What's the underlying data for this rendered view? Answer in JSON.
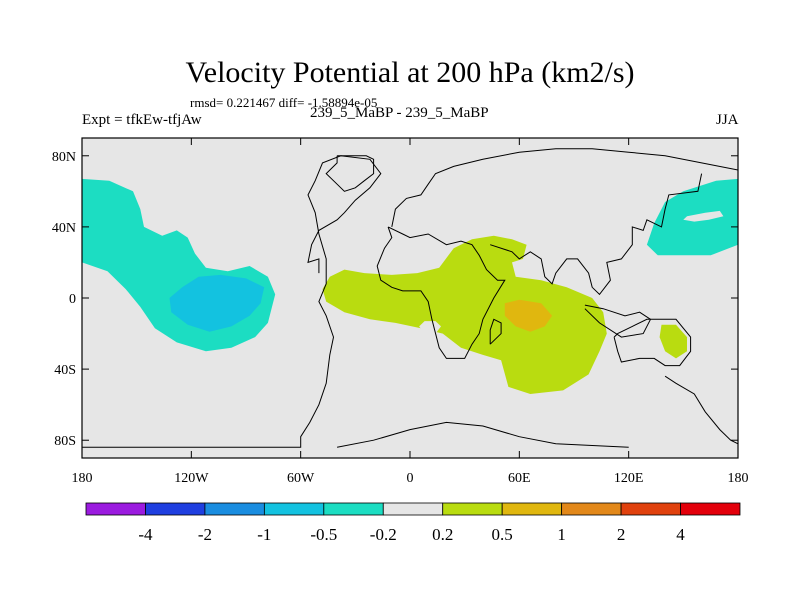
{
  "title": "Velocity Potential at 200 hPa (km2/s)",
  "stats_text": "rmsd= 0.221467 diff= -1.58894e-05",
  "left_label": "Expt = tfkEw-tfjAw",
  "center_label": "239_5_MaBP - 239_5_MaBP",
  "right_label": "JJA",
  "chart_data": {
    "type": "heatmap",
    "projection": "cylindrical equidistant, longitude 180 to 180 (centered on 0)",
    "x_ticks": [
      {
        "lon": -180,
        "label": "180"
      },
      {
        "lon": -120,
        "label": "120W"
      },
      {
        "lon": -60,
        "label": "60W"
      },
      {
        "lon": 0,
        "label": "0"
      },
      {
        "lon": 60,
        "label": "60E"
      },
      {
        "lon": 120,
        "label": "120E"
      },
      {
        "lon": 180,
        "label": "180"
      }
    ],
    "y_ticks": [
      {
        "lat": 80,
        "label": "80N"
      },
      {
        "lat": 40,
        "label": "40N"
      },
      {
        "lat": 0,
        "label": "0"
      },
      {
        "lat": -40,
        "label": "40S"
      },
      {
        "lat": -80,
        "label": "80S"
      }
    ],
    "xlim": [
      -180,
      180
    ],
    "ylim": [
      -90,
      90
    ],
    "background_color": "#e6e6e6",
    "color_bar": {
      "boundaries": [
        "-4",
        "-2",
        "-1",
        "-0.5",
        "-0.2",
        "0.2",
        "0.5",
        "1",
        "2",
        "4"
      ],
      "colors": [
        "#9b1bdf",
        "#1f3fe0",
        "#1a8de0",
        "#13c2e0",
        "#1cddc2",
        "#e6e6e6",
        "#b9dc10",
        "#e0b70f",
        "#e2881a",
        "#e0410e",
        "#e3000b"
      ]
    },
    "regions": [
      {
        "name": "north-pacific-east",
        "level": "-0.5 to -0.2",
        "color": "#1cddc2",
        "points": [
          [
            -180,
            67
          ],
          [
            -165,
            66
          ],
          [
            -152,
            60
          ],
          [
            -148,
            50
          ],
          [
            -146,
            40
          ],
          [
            -136,
            35
          ],
          [
            -128,
            38
          ],
          [
            -122,
            34
          ],
          [
            -118,
            25
          ],
          [
            -112,
            17
          ],
          [
            -100,
            15
          ],
          [
            -88,
            18
          ],
          [
            -78,
            12
          ],
          [
            -74,
            2
          ],
          [
            -78,
            -14
          ],
          [
            -85,
            -22
          ],
          [
            -98,
            -28
          ],
          [
            -112,
            -30
          ],
          [
            -128,
            -25
          ],
          [
            -140,
            -17
          ],
          [
            -148,
            -5
          ],
          [
            -156,
            5
          ],
          [
            -166,
            15
          ],
          [
            -180,
            20
          ]
        ]
      },
      {
        "name": "east-pacific-core",
        "level": "-1 to -0.5",
        "color": "#13c2e0",
        "points": [
          [
            -132,
            0
          ],
          [
            -125,
            6
          ],
          [
            -116,
            12
          ],
          [
            -104,
            13
          ],
          [
            -90,
            11
          ],
          [
            -80,
            6
          ],
          [
            -82,
            -3
          ],
          [
            -88,
            -10
          ],
          [
            -98,
            -16
          ],
          [
            -110,
            -19
          ],
          [
            -122,
            -15
          ],
          [
            -131,
            -8
          ]
        ]
      },
      {
        "name": "north-pacific-west",
        "level": "-0.5 to -0.2",
        "color": "#1cddc2",
        "points": [
          [
            180,
            67
          ],
          [
            168,
            66
          ],
          [
            150,
            60
          ],
          [
            140,
            54
          ],
          [
            134,
            42
          ],
          [
            130,
            30
          ],
          [
            136,
            24
          ],
          [
            150,
            24
          ],
          [
            165,
            24
          ],
          [
            175,
            28
          ],
          [
            180,
            30
          ]
        ]
      },
      {
        "name": "west-pacific-hole",
        "level": "-0.2 to 0.2",
        "color": "#e6e6e6",
        "points": [
          [
            152,
            46
          ],
          [
            162,
            48
          ],
          [
            170,
            49
          ],
          [
            172,
            46
          ],
          [
            164,
            44
          ],
          [
            156,
            43
          ],
          [
            150,
            44
          ]
        ]
      },
      {
        "name": "africa-indian-ocean",
        "level": "0.2 to 0.5",
        "color": "#b9dc10",
        "points": [
          [
            -48,
            5
          ],
          [
            -44,
            12
          ],
          [
            -36,
            16
          ],
          [
            -25,
            14
          ],
          [
            -10,
            13
          ],
          [
            4,
            14
          ],
          [
            16,
            17
          ],
          [
            24,
            28
          ],
          [
            34,
            33
          ],
          [
            46,
            35
          ],
          [
            56,
            33
          ],
          [
            64,
            30
          ],
          [
            62,
            22
          ],
          [
            56,
            20
          ],
          [
            58,
            12
          ],
          [
            72,
            10
          ],
          [
            86,
            6
          ],
          [
            100,
            0
          ],
          [
            106,
            -8
          ],
          [
            108,
            -20
          ],
          [
            104,
            -30
          ],
          [
            98,
            -43
          ],
          [
            84,
            -52
          ],
          [
            66,
            -54
          ],
          [
            54,
            -50
          ],
          [
            50,
            -35
          ],
          [
            40,
            -32
          ],
          [
            28,
            -28
          ],
          [
            18,
            -20
          ],
          [
            6,
            -17
          ],
          [
            -8,
            -14
          ],
          [
            -22,
            -12
          ],
          [
            -36,
            -8
          ],
          [
            -46,
            -2
          ]
        ]
      },
      {
        "name": "south-atlantic-hole",
        "level": "-0.2 to 0.2",
        "color": "#e6e6e6",
        "points": [
          [
            8,
            -13
          ],
          [
            14,
            -13
          ],
          [
            17,
            -16
          ],
          [
            14,
            -20
          ],
          [
            8,
            -20
          ],
          [
            5,
            -16
          ]
        ]
      },
      {
        "name": "indian-ocean-peak",
        "level": "0.5 to 1",
        "color": "#e0b70f",
        "points": [
          [
            52,
            -3
          ],
          [
            60,
            -1
          ],
          [
            72,
            -3
          ],
          [
            78,
            -10
          ],
          [
            74,
            -16
          ],
          [
            66,
            -19
          ],
          [
            58,
            -16
          ],
          [
            52,
            -10
          ]
        ]
      },
      {
        "name": "south-pacific-blob",
        "level": "0.2 to 0.5",
        "color": "#b9dc10",
        "points": [
          [
            138,
            -15
          ],
          [
            146,
            -15
          ],
          [
            152,
            -22
          ],
          [
            152,
            -30
          ],
          [
            146,
            -34
          ],
          [
            140,
            -30
          ],
          [
            137,
            -22
          ]
        ]
      }
    ],
    "coastlines": [
      [
        [
          -180,
          -84
        ],
        [
          -60,
          -84
        ],
        [
          -60,
          -78
        ],
        [
          -55,
          -70
        ],
        [
          -50,
          -60
        ],
        [
          -46,
          -48
        ],
        [
          -44,
          -32
        ],
        [
          -42,
          -22
        ],
        [
          -46,
          -10
        ],
        [
          -50,
          -2
        ],
        [
          -46,
          8
        ],
        [
          -46,
          22
        ],
        [
          -50,
          36
        ],
        [
          -52,
          48
        ],
        [
          -56,
          58
        ],
        [
          -52,
          66
        ],
        [
          -48,
          76
        ],
        [
          -38,
          80
        ],
        [
          -22,
          78
        ],
        [
          -16,
          70
        ],
        [
          -22,
          62
        ],
        [
          -30,
          55
        ],
        [
          -36,
          48
        ],
        [
          -40,
          44
        ],
        [
          -50,
          38
        ],
        [
          -54,
          30
        ],
        [
          -56,
          20
        ],
        [
          -50,
          22
        ],
        [
          -50,
          14
        ]
      ],
      [
        [
          -40,
          80
        ],
        [
          -24,
          80
        ],
        [
          -20,
          78
        ],
        [
          -20,
          70
        ],
        [
          -25,
          66
        ],
        [
          -30,
          62
        ],
        [
          -36,
          60
        ],
        [
          -40,
          64
        ],
        [
          -46,
          70
        ],
        [
          -40,
          76
        ],
        [
          -40,
          80
        ]
      ],
      [
        [
          -12,
          40
        ],
        [
          -4,
          36
        ],
        [
          0,
          34
        ],
        [
          10,
          36
        ],
        [
          20,
          30
        ],
        [
          28,
          32
        ],
        [
          34,
          30
        ],
        [
          38,
          24
        ],
        [
          42,
          16
        ],
        [
          48,
          10
        ],
        [
          52,
          10
        ],
        [
          46,
          0
        ],
        [
          40,
          -12
        ],
        [
          38,
          -20
        ],
        [
          34,
          -26
        ],
        [
          30,
          -34
        ],
        [
          20,
          -34
        ],
        [
          16,
          -28
        ],
        [
          12,
          -12
        ],
        [
          10,
          -2
        ],
        [
          6,
          4
        ],
        [
          -4,
          4
        ],
        [
          -10,
          6
        ],
        [
          -16,
          10
        ],
        [
          -18,
          18
        ],
        [
          -14,
          28
        ],
        [
          -10,
          34
        ],
        [
          -12,
          40
        ]
      ],
      [
        [
          -10,
          40
        ],
        [
          -8,
          50
        ],
        [
          -2,
          56
        ],
        [
          6,
          58
        ],
        [
          10,
          64
        ],
        [
          14,
          70
        ],
        [
          24,
          74
        ],
        [
          40,
          78
        ],
        [
          60,
          82
        ],
        [
          80,
          84
        ],
        [
          100,
          84
        ],
        [
          120,
          82
        ],
        [
          140,
          80
        ],
        [
          160,
          76
        ],
        [
          180,
          72
        ]
      ],
      [
        [
          44,
          30
        ],
        [
          56,
          26
        ],
        [
          60,
          22
        ],
        [
          66,
          26
        ],
        [
          72,
          22
        ],
        [
          74,
          12
        ],
        [
          78,
          8
        ],
        [
          80,
          14
        ],
        [
          86,
          22
        ],
        [
          92,
          22
        ],
        [
          98,
          14
        ],
        [
          100,
          6
        ],
        [
          104,
          2
        ],
        [
          110,
          10
        ],
        [
          108,
          20
        ],
        [
          116,
          22
        ],
        [
          122,
          30
        ],
        [
          122,
          40
        ],
        [
          128,
          38
        ],
        [
          130,
          44
        ],
        [
          138,
          40
        ],
        [
          140,
          50
        ],
        [
          142,
          58
        ],
        [
          158,
          60
        ],
        [
          160,
          70
        ]
      ],
      [
        [
          96,
          -4
        ],
        [
          106,
          -6
        ],
        [
          118,
          -10
        ],
        [
          126,
          -8
        ],
        [
          132,
          -12
        ],
        [
          128,
          -20
        ],
        [
          116,
          -22
        ],
        [
          104,
          -14
        ],
        [
          96,
          -6
        ]
      ],
      [
        [
          44,
          -26
        ],
        [
          50,
          -20
        ],
        [
          50,
          -14
        ],
        [
          46,
          -12
        ],
        [
          44,
          -18
        ],
        [
          44,
          -26
        ]
      ],
      [
        [
          112,
          -22
        ],
        [
          114,
          -30
        ],
        [
          116,
          -36
        ],
        [
          126,
          -34
        ],
        [
          134,
          -34
        ],
        [
          140,
          -38
        ],
        [
          148,
          -38
        ],
        [
          154,
          -30
        ],
        [
          154,
          -22
        ],
        [
          146,
          -12
        ],
        [
          140,
          -12
        ],
        [
          130,
          -12
        ],
        [
          122,
          -16
        ],
        [
          114,
          -20
        ],
        [
          112,
          -22
        ]
      ],
      [
        [
          140,
          -44
        ],
        [
          146,
          -48
        ],
        [
          156,
          -54
        ],
        [
          162,
          -64
        ],
        [
          170,
          -74
        ],
        [
          176,
          -80
        ],
        [
          180,
          -82
        ]
      ],
      [
        [
          120,
          -84
        ],
        [
          80,
          -82
        ],
        [
          60,
          -78
        ],
        [
          40,
          -72
        ],
        [
          20,
          -70
        ],
        [
          0,
          -74
        ],
        [
          -20,
          -80
        ],
        [
          -40,
          -84
        ]
      ]
    ]
  }
}
